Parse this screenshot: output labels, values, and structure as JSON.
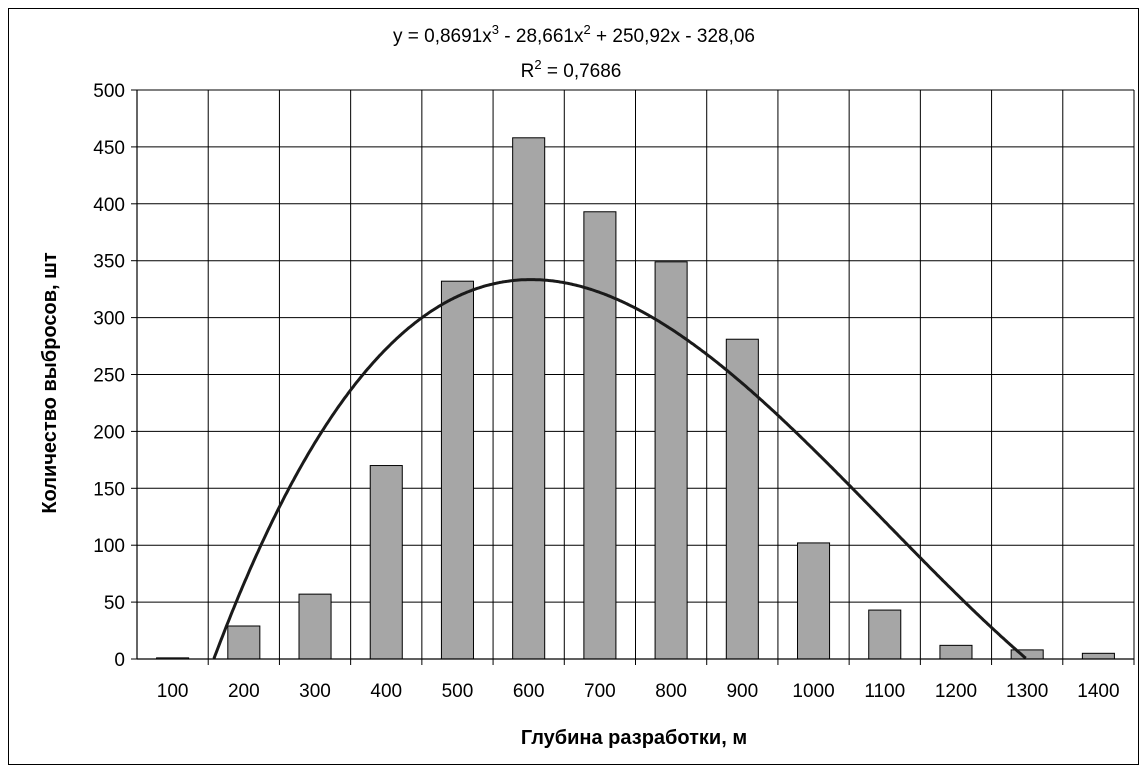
{
  "chart_data": {
    "type": "bar",
    "categories": [
      "100",
      "200",
      "300",
      "400",
      "500",
      "600",
      "700",
      "800",
      "900",
      "1000",
      "1100",
      "1200",
      "1300",
      "1400"
    ],
    "values": [
      1,
      29,
      57,
      170,
      332,
      458,
      393,
      349,
      281,
      102,
      43,
      12,
      8,
      5
    ],
    "ylabel": "Количество выбросов, шт",
    "xlabel": "Глубина разработки, м",
    "ylim": [
      0,
      500
    ],
    "yticks": [
      0,
      50,
      100,
      150,
      200,
      250,
      300,
      350,
      400,
      450,
      500
    ],
    "grid": true,
    "bar_color": "#a6a6a6",
    "trendline": {
      "type": "polynomial",
      "order": 3,
      "coefficients": [
        0.8691,
        -28.661,
        250.92,
        -328.06
      ],
      "equation": "y = 0,8691x³ - 28,661x² + 250,92x - 328,06",
      "r_squared": "R² = 0,7686",
      "color": "#1a1a1a"
    }
  }
}
